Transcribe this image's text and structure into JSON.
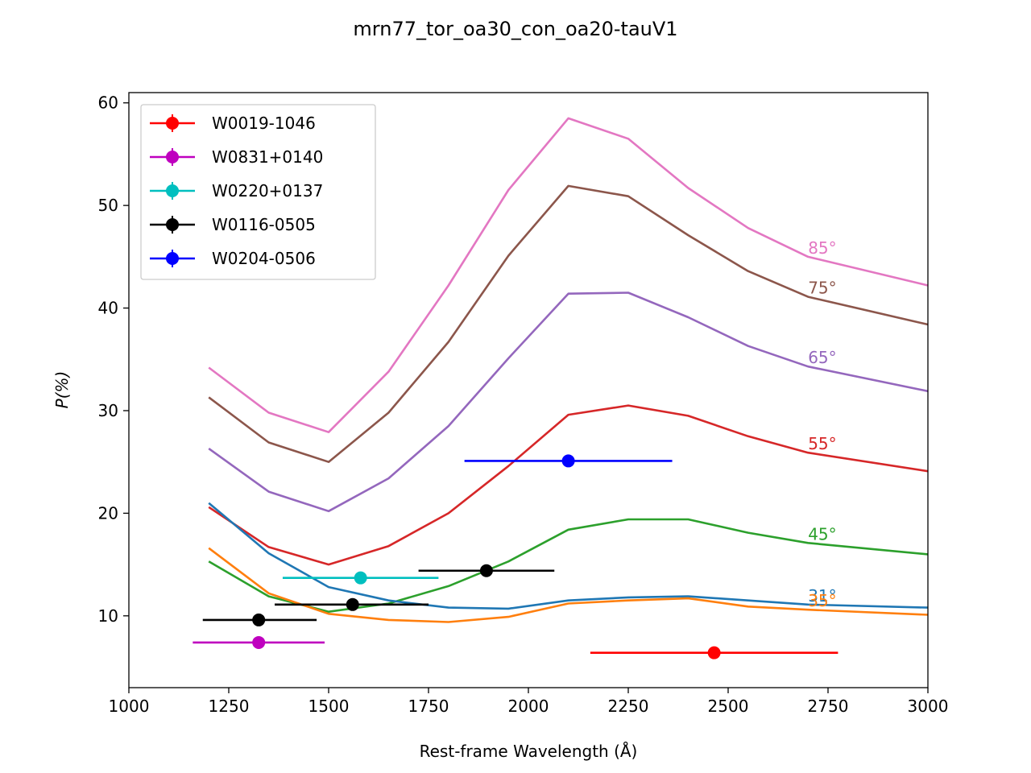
{
  "chart_data": {
    "type": "line",
    "title": "mrn77_tor_oa30_con_oa20-tauV1",
    "xlabel": "Rest-frame Wavelength (Å)",
    "ylabel": "P(%)",
    "xlim": [
      1000,
      3000
    ],
    "ylim": [
      3,
      61
    ],
    "xticks": [
      1000,
      1250,
      1500,
      1750,
      2000,
      2250,
      2500,
      2750,
      3000
    ],
    "yticks": [
      10,
      20,
      30,
      40,
      50,
      60
    ],
    "grid": false,
    "legend_position": "upper-left",
    "x": [
      1200,
      1350,
      1500,
      1650,
      1800,
      1950,
      2100,
      2250,
      2400,
      2550,
      2700,
      3000
    ],
    "model_series": [
      {
        "label": "85°",
        "color": "#e377c2",
        "values": [
          34.2,
          29.8,
          27.9,
          33.8,
          42.2,
          51.5,
          58.5,
          56.5,
          51.7,
          47.8,
          45.0,
          42.2
        ]
      },
      {
        "label": "75°",
        "color": "#8c564b",
        "values": [
          31.3,
          26.9,
          25.0,
          29.8,
          36.7,
          45.1,
          51.9,
          50.9,
          47.1,
          43.6,
          41.1,
          38.4
        ]
      },
      {
        "label": "65°",
        "color": "#9467bd",
        "values": [
          26.3,
          22.1,
          20.2,
          23.4,
          28.5,
          35.1,
          41.4,
          41.5,
          39.1,
          36.3,
          34.3,
          31.9
        ]
      },
      {
        "label": "55°",
        "color": "#d62728",
        "values": [
          20.6,
          16.7,
          15.0,
          16.8,
          20.0,
          24.6,
          29.6,
          30.5,
          29.5,
          27.5,
          25.9,
          24.1
        ]
      },
      {
        "label": "45°",
        "color": "#2ca02c",
        "values": [
          15.3,
          11.9,
          10.4,
          11.2,
          12.9,
          15.3,
          18.4,
          19.4,
          19.4,
          18.1,
          17.1,
          16.0
        ]
      },
      {
        "label": "31°",
        "color": "#1f77b4",
        "values": [
          21.0,
          16.1,
          12.8,
          11.5,
          10.8,
          10.7,
          11.5,
          11.8,
          11.9,
          11.5,
          11.1,
          10.8
        ]
      },
      {
        "label": "35°",
        "color": "#ff7f0e",
        "values": [
          16.6,
          12.2,
          10.2,
          9.6,
          9.4,
          9.9,
          11.2,
          11.5,
          11.7,
          10.9,
          10.6,
          10.1
        ]
      }
    ],
    "observed_series": [
      {
        "name": "W0019-1046",
        "color": "#ff0000",
        "x": 2465,
        "y": 6.4,
        "xerr_low": 2155,
        "xerr_high": 2775
      },
      {
        "name": "W0831+0140",
        "color": "#bf00bf",
        "x": 1325,
        "y": 7.4,
        "xerr_low": 1160,
        "xerr_high": 1490
      },
      {
        "name": "W0220+0137",
        "color": "#00bfbf",
        "x": 1580,
        "y": 13.7,
        "xerr_low": 1385,
        "xerr_high": 1775
      },
      {
        "name": "W0116-0505",
        "color": "#000000",
        "points": [
          {
            "x": 1325,
            "y": 9.6,
            "xerr_low": 1185,
            "xerr_high": 1470
          },
          {
            "x": 1560,
            "y": 11.1,
            "xerr_low": 1365,
            "xerr_high": 1750
          },
          {
            "x": 1895,
            "y": 14.4,
            "xerr_low": 1725,
            "xerr_high": 2065
          }
        ]
      },
      {
        "name": "W0204-0506",
        "color": "#0000ff",
        "x": 2100,
        "y": 25.1,
        "xerr_low": 1840,
        "xerr_high": 2360
      }
    ]
  }
}
